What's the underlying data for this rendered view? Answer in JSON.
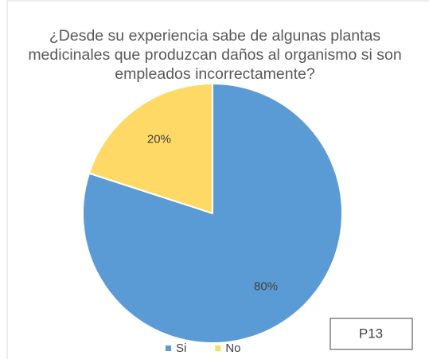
{
  "chart_data": {
    "type": "pie",
    "title": "¿Desde su experiencia sabe de algunas plantas medicinales que produzcan daños al organismo si son empleados incorrectamente?",
    "categories": [
      "Si",
      "No"
    ],
    "values": [
      80,
      20
    ],
    "value_labels": [
      "80%",
      "20%"
    ],
    "colors": [
      "#5b9bd5",
      "#ffd966"
    ],
    "annotation": "P13",
    "legend": "bottom"
  }
}
